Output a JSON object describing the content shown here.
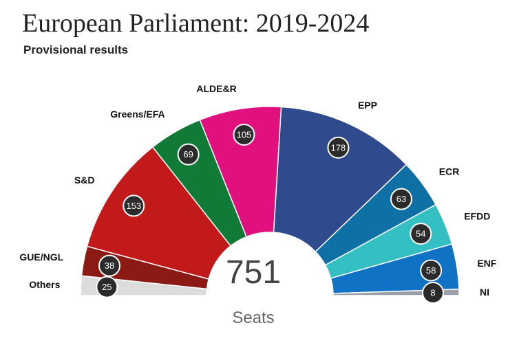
{
  "title": "European Parliament: 2019-2024",
  "subtitle": "Provisional results",
  "chart_data": {
    "type": "pie",
    "subtype": "parliament-semicircle",
    "total": 751,
    "total_label": "Seats",
    "series": [
      {
        "name": "Others",
        "value": 25,
        "color": "#dcdcdc"
      },
      {
        "name": "GUE/NGL",
        "value": 38,
        "color": "#8b1a14"
      },
      {
        "name": "S&D",
        "value": 153,
        "color": "#c21a1a"
      },
      {
        "name": "Greens/EFA",
        "value": 69,
        "color": "#107a36"
      },
      {
        "name": "ALDE&R",
        "value": 105,
        "color": "#e0107f"
      },
      {
        "name": "EPP",
        "value": 178,
        "color": "#2f4a8d"
      },
      {
        "name": "ECR",
        "value": 63,
        "color": "#0e70a4"
      },
      {
        "name": "EFDD",
        "value": 54,
        "color": "#34bfc2"
      },
      {
        "name": "ENF",
        "value": 58,
        "color": "#0f72c4"
      },
      {
        "name": "NI",
        "value": 8,
        "color": "#9aa0a8"
      }
    ]
  }
}
